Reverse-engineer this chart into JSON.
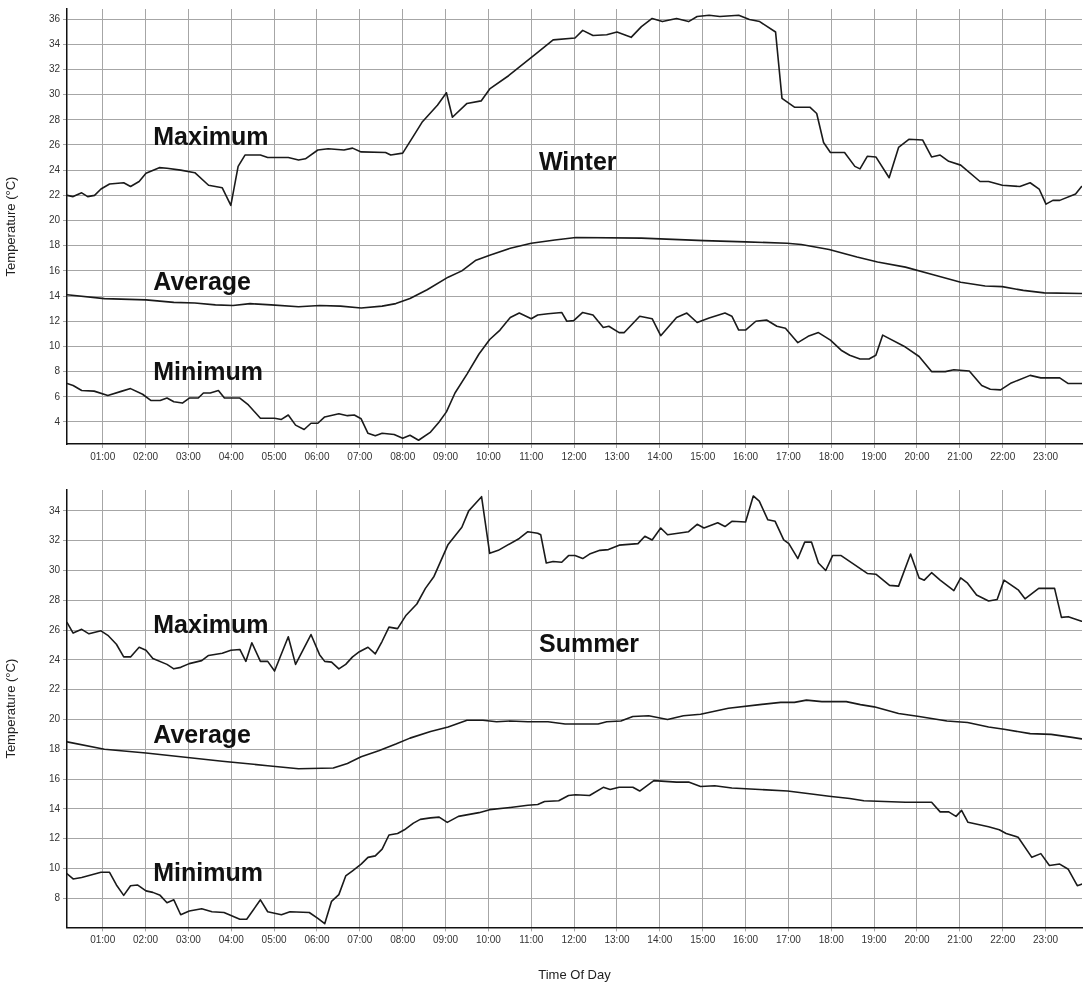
{
  "chart_data": [
    {
      "type": "line",
      "title": "Winter",
      "ylabel": "Temperature (°C)",
      "xlim": [
        0.167,
        23.85
      ],
      "ylim": [
        2.25,
        36.8
      ],
      "yticks": [
        4,
        6,
        8,
        10,
        12,
        14,
        16,
        18,
        20,
        22,
        24,
        26,
        28,
        30,
        32,
        34,
        36
      ],
      "xticks": [
        {
          "value": 1,
          "label": "01:00"
        },
        {
          "value": 2,
          "label": "02:00"
        },
        {
          "value": 3,
          "label": "03:00"
        },
        {
          "value": 4,
          "label": "04:00"
        },
        {
          "value": 5,
          "label": "05:00"
        },
        {
          "value": 6,
          "label": "06:00"
        },
        {
          "value": 7,
          "label": "07:00"
        },
        {
          "value": 8,
          "label": "08:00"
        },
        {
          "value": 9,
          "label": "09:00"
        },
        {
          "value": 10,
          "label": "10:00"
        },
        {
          "value": 11,
          "label": "11:00"
        },
        {
          "value": 12,
          "label": "12:00"
        },
        {
          "value": 13,
          "label": "13:00"
        },
        {
          "value": 14,
          "label": "14:00"
        },
        {
          "value": 15,
          "label": "15:00"
        },
        {
          "value": 16,
          "label": "16:00"
        },
        {
          "value": 17,
          "label": "17:00"
        },
        {
          "value": 18,
          "label": "18:00"
        },
        {
          "value": 19,
          "label": "19:00"
        },
        {
          "value": 20,
          "label": "20:00"
        },
        {
          "value": 21,
          "label": "21:00"
        },
        {
          "value": 22,
          "label": "22:00"
        },
        {
          "value": 23,
          "label": "23:00"
        }
      ],
      "grid": true,
      "legend": false,
      "marker": "none",
      "line_style": "solid",
      "series": [
        {
          "name": "Maximum",
          "color": "#1a1a1a",
          "x": [
            0.17,
            0.31,
            0.51,
            0.65,
            0.81,
            0.96,
            1.16,
            1.49,
            1.65,
            1.85,
            2.01,
            2.32,
            2.5,
            2.82,
            3.15,
            3.47,
            3.79,
            3.99,
            4.16,
            4.32,
            4.68,
            4.85,
            5.33,
            5.57,
            5.73,
            6.02,
            6.26,
            6.63,
            6.83,
            7.03,
            7.6,
            7.72,
            8.0,
            8.25,
            8.45,
            8.81,
            9.02,
            9.16,
            9.5,
            9.83,
            10.03,
            10.47,
            11.15,
            11.51,
            12.02,
            12.2,
            12.44,
            12.76,
            13.0,
            13.33,
            13.57,
            13.82,
            14.06,
            14.39,
            14.67,
            14.87,
            15.15,
            15.4,
            15.84,
            16.09,
            16.33,
            16.7,
            16.85,
            17.14,
            17.5,
            17.66,
            17.82,
            17.98,
            18.31,
            18.55,
            18.67,
            18.84,
            19.04,
            19.35,
            19.57,
            19.81,
            20.13,
            20.34,
            20.54,
            20.74,
            21.02,
            21.47,
            21.67,
            21.99,
            22.4,
            22.64,
            22.85,
            23.01,
            23.17,
            23.33,
            23.7,
            23.84
          ],
          "values": [
            22.0,
            21.9,
            22.2,
            21.9,
            22.0,
            22.5,
            22.9,
            23.0,
            22.7,
            23.1,
            23.75,
            24.2,
            24.15,
            24.0,
            23.8,
            22.8,
            22.6,
            21.2,
            24.3,
            25.2,
            25.2,
            25.0,
            25.0,
            24.8,
            24.9,
            25.6,
            25.7,
            25.6,
            25.75,
            25.45,
            25.4,
            25.2,
            25.35,
            26.7,
            27.8,
            29.15,
            30.15,
            28.2,
            29.3,
            29.5,
            30.45,
            31.5,
            33.35,
            34.35,
            34.5,
            35.1,
            34.7,
            34.75,
            34.97,
            34.55,
            35.4,
            36.05,
            35.8,
            36.05,
            35.8,
            36.2,
            36.3,
            36.2,
            36.3,
            35.97,
            35.8,
            34.97,
            29.7,
            29.0,
            29.0,
            28.5,
            26.2,
            25.4,
            25.4,
            24.3,
            24.1,
            25.1,
            25.05,
            23.4,
            25.8,
            26.45,
            26.4,
            25.05,
            25.2,
            24.7,
            24.4,
            23.1,
            23.1,
            22.8,
            22.7,
            23.0,
            22.5,
            21.3,
            21.6,
            21.6,
            22.1,
            22.7
          ]
        },
        {
          "name": "Average",
          "color": "#1a1a1a",
          "x": [
            0.17,
            1.04,
            2.01,
            2.66,
            3.15,
            3.63,
            4.04,
            4.44,
            4.93,
            5.57,
            6.06,
            6.55,
            7.03,
            7.52,
            7.84,
            8.17,
            8.57,
            9.06,
            9.38,
            9.71,
            10.03,
            10.51,
            11.0,
            11.55,
            12.04,
            13.57,
            15.03,
            16.0,
            16.97,
            17.3,
            17.95,
            18.6,
            19.08,
            19.73,
            20.38,
            21.02,
            21.59,
            21.99,
            22.48,
            22.97,
            23.84
          ],
          "values": [
            14.1,
            13.8,
            13.7,
            13.5,
            13.45,
            13.3,
            13.25,
            13.4,
            13.3,
            13.15,
            13.25,
            13.2,
            13.05,
            13.2,
            13.4,
            13.8,
            14.5,
            15.5,
            16.0,
            16.85,
            17.25,
            17.8,
            18.2,
            18.45,
            18.65,
            18.6,
            18.4,
            18.3,
            18.2,
            18.1,
            17.7,
            17.1,
            16.7,
            16.3,
            15.7,
            15.1,
            14.8,
            14.75,
            14.45,
            14.25,
            14.2
          ]
        },
        {
          "name": "Minimum",
          "color": "#1a1a1a",
          "x": [
            0.17,
            0.31,
            0.51,
            0.8,
            1.12,
            1.45,
            1.65,
            1.93,
            2.13,
            2.34,
            2.5,
            2.66,
            2.86,
            3.02,
            3.23,
            3.35,
            3.51,
            3.7,
            3.84,
            4.2,
            4.4,
            4.68,
            5.01,
            5.17,
            5.33,
            5.5,
            5.7,
            5.86,
            6.02,
            6.18,
            6.51,
            6.71,
            6.87,
            7.03,
            7.19,
            7.36,
            7.52,
            7.8,
            8.0,
            8.17,
            8.37,
            8.65,
            8.85,
            9.02,
            9.22,
            9.5,
            9.78,
            10.03,
            10.27,
            10.51,
            10.72,
            11.0,
            11.15,
            11.39,
            11.71,
            11.83,
            11.99,
            12.2,
            12.44,
            12.68,
            12.81,
            13.05,
            13.17,
            13.53,
            13.82,
            14.02,
            14.39,
            14.63,
            14.87,
            15.15,
            15.52,
            15.68,
            15.84,
            16.0,
            16.24,
            16.49,
            16.73,
            16.93,
            17.22,
            17.46,
            17.7,
            17.98,
            18.23,
            18.43,
            18.67,
            18.88,
            19.04,
            19.2,
            19.73,
            20.05,
            20.34,
            20.66,
            20.86,
            21.22,
            21.51,
            21.71,
            21.95,
            22.2,
            22.64,
            22.89,
            23.33,
            23.53,
            23.84
          ],
          "values": [
            7.05,
            6.9,
            6.5,
            6.45,
            6.1,
            6.45,
            6.65,
            6.2,
            5.7,
            5.7,
            5.9,
            5.6,
            5.5,
            5.9,
            5.9,
            6.3,
            6.3,
            6.5,
            5.9,
            5.9,
            5.35,
            4.3,
            4.3,
            4.2,
            4.55,
            3.75,
            3.4,
            3.9,
            3.9,
            4.4,
            4.65,
            4.5,
            4.55,
            4.25,
            3.1,
            2.9,
            3.1,
            3.0,
            2.7,
            2.95,
            2.55,
            3.2,
            4.0,
            4.8,
            6.3,
            7.8,
            9.4,
            10.55,
            11.3,
            12.3,
            12.65,
            12.2,
            12.5,
            12.6,
            12.7,
            12.0,
            12.05,
            12.7,
            12.5,
            11.5,
            11.6,
            11.1,
            11.1,
            12.4,
            12.2,
            10.85,
            12.3,
            12.65,
            11.9,
            12.25,
            12.65,
            12.4,
            11.3,
            11.3,
            12.0,
            12.1,
            11.6,
            11.45,
            10.3,
            10.8,
            11.1,
            10.5,
            9.7,
            9.3,
            9.0,
            9.0,
            9.3,
            10.9,
            9.95,
            9.2,
            8.0,
            8.0,
            8.15,
            8.05,
            6.9,
            6.6,
            6.55,
            7.1,
            7.7,
            7.5,
            7.5,
            7.05,
            7.05
          ]
        }
      ]
    },
    {
      "type": "line",
      "title": "Summer",
      "xlabel": "Time Of Day",
      "ylabel": "Temperature (°C)",
      "xlim": [
        0.167,
        23.85
      ],
      "ylim": [
        6.05,
        35.4
      ],
      "yticks": [
        8,
        10,
        12,
        14,
        16,
        18,
        20,
        22,
        24,
        26,
        28,
        30,
        32,
        34
      ],
      "xticks": [
        {
          "value": 1,
          "label": "01:00"
        },
        {
          "value": 2,
          "label": "02:00"
        },
        {
          "value": 3,
          "label": "03:00"
        },
        {
          "value": 4,
          "label": "04:00"
        },
        {
          "value": 5,
          "label": "05:00"
        },
        {
          "value": 6,
          "label": "06:00"
        },
        {
          "value": 7,
          "label": "07:00"
        },
        {
          "value": 8,
          "label": "08:00"
        },
        {
          "value": 9,
          "label": "09:00"
        },
        {
          "value": 10,
          "label": "10:00"
        },
        {
          "value": 11,
          "label": "11:00"
        },
        {
          "value": 12,
          "label": "12:00"
        },
        {
          "value": 13,
          "label": "13:00"
        },
        {
          "value": 14,
          "label": "14:00"
        },
        {
          "value": 15,
          "label": "15:00"
        },
        {
          "value": 16,
          "label": "16:00"
        },
        {
          "value": 17,
          "label": "17:00"
        },
        {
          "value": 18,
          "label": "18:00"
        },
        {
          "value": 19,
          "label": "19:00"
        },
        {
          "value": 20,
          "label": "20:00"
        },
        {
          "value": 21,
          "label": "21:00"
        },
        {
          "value": 22,
          "label": "22:00"
        },
        {
          "value": 23,
          "label": "23:00"
        }
      ],
      "grid": true,
      "legend": false,
      "marker": "none",
      "line_style": "solid",
      "series": [
        {
          "name": "Maximum",
          "color": "#1a1a1a",
          "x": [
            0.17,
            0.31,
            0.51,
            0.68,
            0.96,
            1.12,
            1.32,
            1.49,
            1.65,
            1.85,
            2.01,
            2.17,
            2.5,
            2.66,
            2.82,
            3.02,
            3.31,
            3.47,
            3.79,
            3.99,
            4.2,
            4.34,
            4.48,
            4.68,
            4.85,
            5.01,
            5.33,
            5.5,
            5.86,
            6.06,
            6.18,
            6.34,
            6.51,
            6.67,
            6.83,
            6.99,
            7.19,
            7.36,
            7.52,
            7.68,
            7.88,
            8.08,
            8.33,
            8.53,
            8.73,
            9.06,
            9.38,
            9.54,
            9.84,
            10.03,
            10.23,
            10.72,
            10.92,
            11.15,
            11.22,
            11.35,
            11.51,
            11.71,
            11.87,
            12.02,
            12.2,
            12.36,
            12.6,
            12.8,
            13.05,
            13.49,
            13.65,
            13.82,
            14.02,
            14.18,
            14.67,
            14.87,
            15.03,
            15.35,
            15.52,
            15.68,
            16.0,
            16.18,
            16.32,
            16.52,
            16.69,
            16.89,
            17.01,
            17.22,
            17.38,
            17.54,
            17.7,
            17.87,
            18.03,
            18.23,
            18.84,
            19.04,
            19.36,
            19.57,
            19.85,
            20.05,
            20.17,
            20.34,
            20.54,
            20.86,
            21.02,
            21.18,
            21.39,
            21.67,
            21.87,
            22.03,
            22.36,
            22.52,
            22.84,
            23.01,
            23.21,
            23.37,
            23.53,
            23.84
          ],
          "values": [
            26.5,
            25.8,
            26.05,
            25.75,
            25.95,
            25.65,
            25.05,
            24.2,
            24.2,
            24.85,
            24.65,
            24.1,
            23.7,
            23.4,
            23.5,
            23.75,
            23.95,
            24.3,
            24.45,
            24.65,
            24.7,
            23.9,
            25.15,
            23.9,
            23.9,
            23.25,
            25.55,
            23.7,
            25.7,
            24.35,
            23.9,
            23.85,
            23.4,
            23.7,
            24.2,
            24.55,
            24.85,
            24.4,
            25.25,
            26.2,
            26.1,
            27.0,
            27.75,
            28.8,
            29.6,
            31.75,
            32.9,
            34.0,
            34.95,
            31.15,
            31.35,
            32.15,
            32.6,
            32.5,
            32.4,
            30.5,
            30.6,
            30.55,
            31.0,
            31.0,
            30.8,
            31.1,
            31.35,
            31.4,
            31.7,
            31.8,
            32.3,
            32.05,
            32.85,
            32.4,
            32.6,
            33.1,
            32.85,
            33.2,
            32.95,
            33.3,
            33.25,
            35.0,
            34.65,
            33.4,
            33.3,
            32.05,
            31.8,
            30.8,
            31.9,
            31.9,
            30.5,
            30.0,
            31.0,
            31.0,
            29.8,
            29.75,
            29.0,
            28.95,
            31.1,
            29.5,
            29.35,
            29.85,
            29.35,
            28.65,
            29.5,
            29.15,
            28.35,
            27.95,
            28.05,
            29.35,
            28.7,
            28.1,
            28.8,
            28.8,
            28.8,
            26.85,
            26.9,
            26.6
          ]
        },
        {
          "name": "Average",
          "color": "#1a1a1a",
          "x": [
            0.17,
            1.04,
            2.01,
            2.82,
            3.79,
            4.85,
            5.57,
            6.38,
            6.71,
            7.03,
            7.44,
            7.84,
            8.17,
            8.65,
            9.06,
            9.5,
            9.87,
            10.19,
            10.51,
            10.92,
            11.39,
            11.79,
            12.56,
            12.76,
            13.09,
            13.37,
            13.74,
            14.18,
            14.55,
            14.95,
            15.6,
            16.33,
            16.82,
            17.14,
            17.42,
            17.78,
            18.35,
            18.68,
            19.0,
            19.57,
            20.05,
            20.7,
            21.18,
            21.67,
            22.03,
            22.64,
            23.13,
            23.62,
            23.84
          ],
          "values": [
            18.5,
            18.0,
            17.75,
            17.5,
            17.2,
            16.9,
            16.7,
            16.75,
            17.05,
            17.5,
            17.9,
            18.35,
            18.75,
            19.2,
            19.5,
            19.95,
            19.95,
            19.85,
            19.9,
            19.85,
            19.85,
            19.7,
            19.7,
            19.85,
            19.9,
            20.2,
            20.25,
            20.0,
            20.25,
            20.35,
            20.75,
            21.0,
            21.15,
            21.15,
            21.3,
            21.2,
            21.2,
            21.0,
            20.85,
            20.4,
            20.2,
            19.9,
            19.8,
            19.5,
            19.35,
            19.05,
            19.0,
            18.8,
            18.7
          ]
        },
        {
          "name": "Minimum",
          "color": "#1a1a1a",
          "x": [
            0.17,
            0.31,
            0.51,
            0.96,
            1.16,
            1.32,
            1.49,
            1.65,
            1.81,
            2.01,
            2.17,
            2.34,
            2.5,
            2.66,
            2.82,
            3.02,
            3.31,
            3.55,
            3.83,
            4.2,
            4.36,
            4.68,
            4.85,
            5.17,
            5.37,
            5.82,
            6.02,
            6.18,
            6.34,
            6.51,
            6.67,
            6.83,
            7.03,
            7.19,
            7.36,
            7.52,
            7.68,
            7.88,
            8.04,
            8.25,
            8.41,
            8.65,
            8.85,
            9.04,
            9.3,
            9.78,
            10.03,
            10.51,
            10.92,
            11.15,
            11.31,
            11.64,
            11.87,
            12.03,
            12.36,
            12.68,
            12.84,
            13.05,
            13.37,
            13.53,
            13.86,
            14.39,
            14.67,
            14.95,
            15.28,
            15.68,
            16.33,
            16.98,
            17.54,
            17.95,
            18.43,
            18.76,
            19.24,
            19.73,
            20.34,
            20.54,
            20.74,
            20.91,
            21.04,
            21.19,
            21.67,
            21.92,
            22.08,
            22.36,
            22.68,
            22.89,
            23.09,
            23.33,
            23.53,
            23.74,
            23.84
          ],
          "values": [
            9.65,
            9.3,
            9.4,
            9.75,
            9.75,
            8.9,
            8.2,
            8.85,
            8.9,
            8.5,
            8.4,
            8.2,
            7.7,
            7.9,
            6.9,
            7.15,
            7.3,
            7.1,
            7.05,
            6.6,
            6.6,
            7.9,
            7.1,
            6.9,
            7.1,
            7.05,
            6.65,
            6.3,
            7.8,
            8.25,
            9.5,
            9.85,
            10.3,
            10.75,
            10.85,
            11.3,
            12.25,
            12.35,
            12.6,
            13.05,
            13.3,
            13.4,
            13.45,
            13.1,
            13.5,
            13.75,
            13.95,
            14.1,
            14.25,
            14.3,
            14.5,
            14.55,
            14.9,
            14.95,
            14.9,
            15.45,
            15.3,
            15.45,
            15.45,
            15.2,
            15.9,
            15.8,
            15.8,
            15.5,
            15.55,
            15.4,
            15.3,
            15.2,
            15.0,
            14.85,
            14.7,
            14.55,
            14.5,
            14.45,
            14.45,
            13.8,
            13.8,
            13.5,
            13.9,
            13.1,
            12.8,
            12.6,
            12.35,
            12.1,
            10.75,
            11.0,
            10.2,
            10.3,
            9.95,
            8.85,
            8.95
          ]
        }
      ]
    }
  ]
}
